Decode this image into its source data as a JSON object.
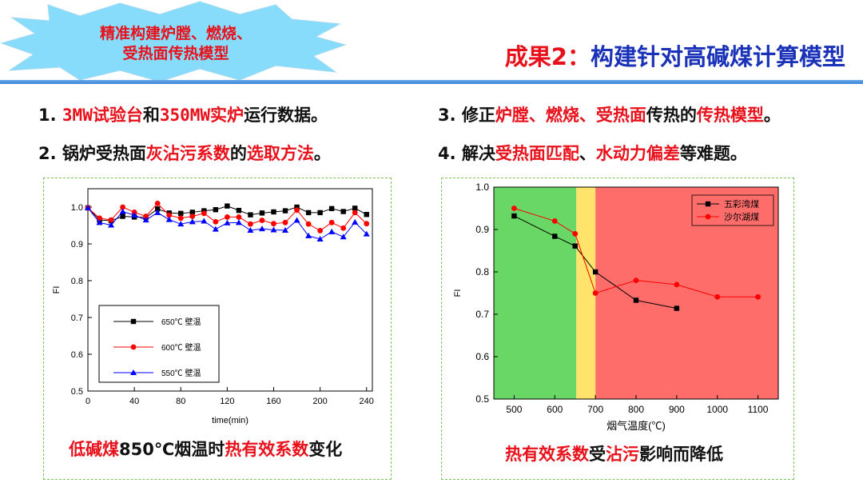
{
  "header": {
    "burst_line1": "精准构建炉膛、燃烧、",
    "burst_line2": "受热面传热模型",
    "title_red": "成果2：",
    "title_blue": "构建针对高碱煤计算模型"
  },
  "bullets": {
    "b1": {
      "num": "1. ",
      "p1": "3MW试验台",
      "p2": "和",
      "p3": "350MW实炉",
      "p4": "运行数据。"
    },
    "b2": {
      "num": "2. ",
      "p1": "锅炉受热面",
      "p2": "灰沾污系数",
      "p3": "的",
      "p4": "选取方法",
      "p5": "。"
    },
    "b3": {
      "num": "3. ",
      "p1": "修正",
      "p2": "炉膛、燃烧、受热面",
      "p3": "传热的",
      "p4": "传热模型",
      "p5": "。"
    },
    "b4": {
      "num": "4. ",
      "p1": "解决",
      "p2": "受热面匹配",
      "p3": "、",
      "p4": "水动力偏差",
      "p5": "等难题。"
    }
  },
  "captions": {
    "left": {
      "p1": "低碱煤",
      "p2": "850℃烟温时",
      "p3": "热有效系数",
      "p4": "变化"
    },
    "right": {
      "p1": "热有效系数",
      "p2": "受",
      "p3": "沾污",
      "p4": "影响而降低"
    }
  },
  "chart_data": [
    {
      "type": "line",
      "title": "",
      "xlabel": "time(min)",
      "ylabel": "FI",
      "xlim": [
        0,
        245
      ],
      "ylim": [
        0.5,
        1.05
      ],
      "xticks": [
        0,
        40,
        80,
        120,
        160,
        200,
        240
      ],
      "yticks": [
        0.5,
        0.6,
        0.7,
        0.8,
        0.9,
        1.0
      ],
      "x": [
        0,
        10,
        20,
        30,
        40,
        50,
        60,
        70,
        80,
        90,
        100,
        110,
        120,
        130,
        140,
        150,
        160,
        170,
        180,
        190,
        200,
        210,
        220,
        230,
        240
      ],
      "legend_position": "bottom-left",
      "series": [
        {
          "name": "650℃ 壁温",
          "color": "#000000",
          "marker": "square",
          "values": [
            0.998,
            0.965,
            0.963,
            0.975,
            0.973,
            0.972,
            0.995,
            0.984,
            0.983,
            0.986,
            0.99,
            0.993,
            1.003,
            0.991,
            0.979,
            0.984,
            0.987,
            0.99,
            1.0,
            0.985,
            0.985,
            0.996,
            0.988,
            0.997,
            0.98
          ]
        },
        {
          "name": "600℃ 壁温",
          "color": "#ff0000",
          "marker": "circle",
          "values": [
            0.998,
            0.97,
            0.965,
            1.0,
            0.986,
            0.975,
            1.01,
            0.978,
            0.97,
            0.975,
            0.983,
            0.96,
            0.973,
            0.973,
            0.954,
            0.964,
            0.955,
            0.958,
            0.992,
            0.954,
            0.936,
            0.958,
            0.943,
            0.985,
            0.955
          ]
        },
        {
          "name": "550℃ 壁温",
          "color": "#0000ff",
          "marker": "triangle",
          "values": [
            0.998,
            0.958,
            0.951,
            0.988,
            0.978,
            0.965,
            0.985,
            0.966,
            0.954,
            0.96,
            0.962,
            0.94,
            0.957,
            0.958,
            0.937,
            0.941,
            0.938,
            0.937,
            0.964,
            0.922,
            0.913,
            0.933,
            0.919,
            0.959,
            0.927
          ]
        }
      ]
    },
    {
      "type": "line",
      "title": "",
      "xlabel": "烟气温度(℃)",
      "ylabel": "FI",
      "xlim": [
        450,
        1150
      ],
      "ylim": [
        0.5,
        1.0
      ],
      "xticks": [
        500,
        600,
        700,
        800,
        900,
        1000,
        1100
      ],
      "yticks": [
        0.5,
        0.6,
        0.7,
        0.8,
        0.9,
        1.0
      ],
      "legend_position": "top-right",
      "bands": [
        {
          "from": 450,
          "to": 653,
          "color": "#69d766"
        },
        {
          "from": 653,
          "to": 700,
          "color": "#ffe36a"
        },
        {
          "from": 700,
          "to": 1150,
          "color": "#ff6d6b"
        }
      ],
      "series": [
        {
          "name": "五彩湾煤",
          "color": "#000000",
          "marker": "square",
          "x": [
            500,
            600,
            650,
            700,
            800,
            900
          ],
          "values": [
            0.932,
            0.884,
            0.861,
            0.8,
            0.733,
            0.714
          ]
        },
        {
          "name": "沙尔湖煤",
          "color": "#ff0000",
          "marker": "circle",
          "x": [
            500,
            600,
            650,
            700,
            800,
            900,
            1000,
            1100
          ],
          "values": [
            0.95,
            0.92,
            0.89,
            0.75,
            0.78,
            0.77,
            0.741,
            0.741
          ]
        }
      ]
    }
  ]
}
